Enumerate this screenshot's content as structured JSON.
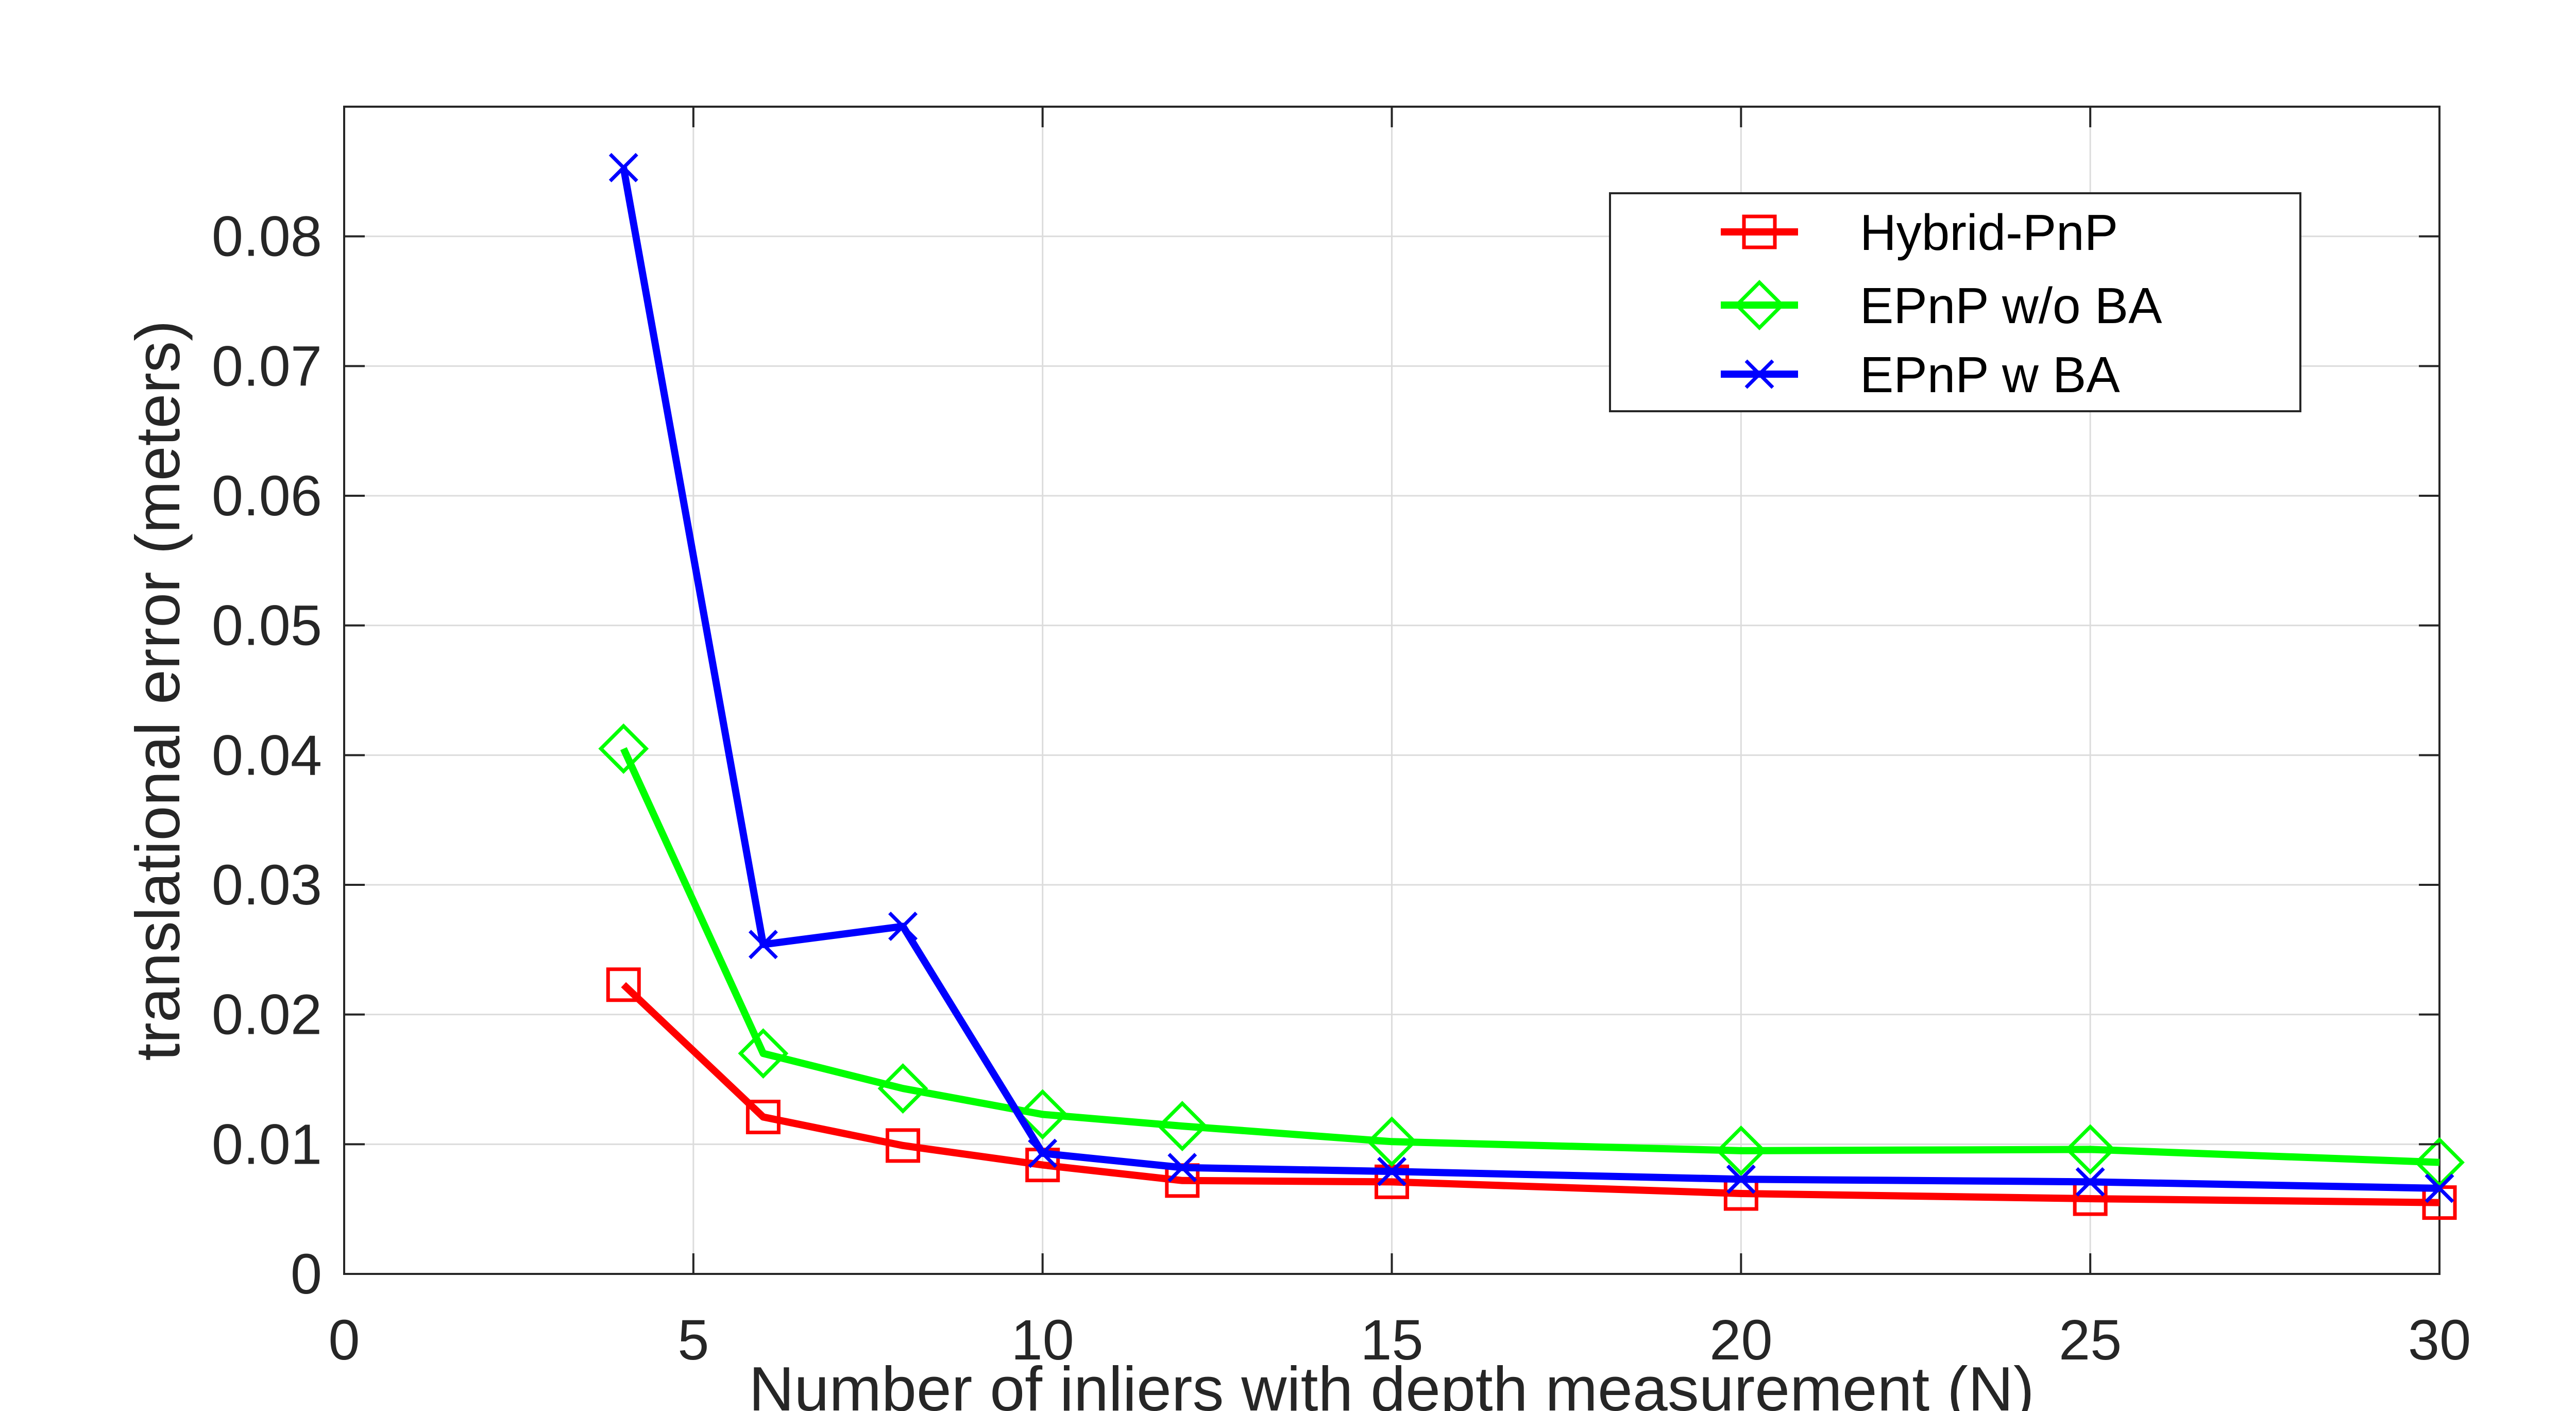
{
  "chart_data": {
    "type": "line",
    "title": "",
    "xlabel": "Number of inliers with depth measurement (N)",
    "ylabel": "translational error (meters)",
    "xlim": [
      0,
      30
    ],
    "ylim": [
      0,
      0.09
    ],
    "xticks": [
      0,
      5,
      10,
      15,
      20,
      25,
      30
    ],
    "xtick_labels": [
      "0",
      "5",
      "10",
      "15",
      "20",
      "25",
      "30"
    ],
    "yticks": [
      0,
      0.01,
      0.02,
      0.03,
      0.04,
      0.05,
      0.06,
      0.07,
      0.08
    ],
    "ytick_labels": [
      "0",
      "0.01",
      "0.02",
      "0.03",
      "0.04",
      "0.05",
      "0.06",
      "0.07",
      "0.08"
    ],
    "grid": true,
    "legend_position": "top-right",
    "x": [
      4,
      6,
      8,
      10,
      12,
      15,
      20,
      25,
      30
    ],
    "series": [
      {
        "name": "Hybrid-PnP",
        "color": "#ff0000",
        "marker": "square",
        "values": [
          0.0223,
          0.0121,
          0.0099,
          0.0084,
          0.0072,
          0.0071,
          0.0062,
          0.0058,
          0.0055
        ]
      },
      {
        "name": "EPnP w/o BA",
        "color": "#00ff00",
        "marker": "diamond",
        "values": [
          0.0405,
          0.017,
          0.0143,
          0.0123,
          0.0114,
          0.0102,
          0.0095,
          0.0096,
          0.0086
        ]
      },
      {
        "name": "EPnP w BA",
        "color": "#0000ff",
        "marker": "x",
        "values": [
          0.0853,
          0.0254,
          0.0268,
          0.0093,
          0.0082,
          0.0079,
          0.0073,
          0.0071,
          0.0066
        ]
      }
    ]
  }
}
